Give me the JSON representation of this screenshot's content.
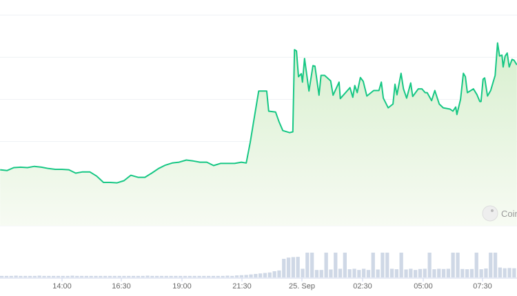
{
  "chart_data": {
    "type": "area",
    "title": "",
    "xlabel": "",
    "ylabel": "",
    "grid": true,
    "legend": "none",
    "ylim": [
      0,
      5
    ],
    "y_tick_labels_shown": false,
    "x_tick_labels": [
      "14:00",
      "16:30",
      "19:00",
      "21:30",
      "25. Sep",
      "02:30",
      "05:00",
      "07:30"
    ],
    "colors": {
      "line": "#16c784",
      "fill_top": "#d8efcf",
      "fill_bottom": "#f7fbf3",
      "grid": "#eef1f4",
      "volume": "#cfd8e6"
    },
    "watermark": {
      "text": "Coin",
      "icon": "coingecko-logo-icon"
    },
    "series": [
      {
        "x": [
          "24 11:26",
          "24 11:43",
          "24 12:00",
          "24 12:17",
          "24 12:34",
          "24 12:51",
          "24 13:09",
          "24 13:26",
          "24 13:43",
          "24 14:00",
          "24 14:17",
          "24 14:34",
          "24 14:51",
          "24 15:09",
          "24 15:26",
          "24 15:43",
          "24 16:00",
          "24 16:17",
          "24 16:34",
          "24 16:51",
          "24 17:09",
          "24 17:26",
          "24 17:43",
          "24 18:00",
          "24 18:17",
          "24 18:34",
          "24 18:51",
          "24 19:09",
          "24 19:26",
          "24 19:43",
          "24 20:00",
          "24 20:17",
          "24 20:34",
          "24 20:51",
          "24 21:09",
          "24 21:26",
          "24 21:38",
          "24 21:48",
          "24 21:55",
          "24 22:09",
          "24 22:29",
          "24 22:34",
          "24 22:51",
          "24 23:00",
          "24 23:09",
          "24 23:26",
          "24 23:34",
          "24 23:38",
          "24 23:43",
          "24 23:48",
          "24 23:55",
          "24 23:58",
          "25 00:03",
          "25 00:14",
          "25 00:24",
          "25 00:29",
          "25 00:39",
          "25 00:44",
          "25 00:53",
          "25 01:08",
          "25 01:14",
          "25 01:29",
          "25 01:32",
          "25 01:56",
          "25 02:03",
          "25 02:08",
          "25 02:14",
          "25 02:22",
          "25 02:29",
          "25 02:38",
          "25 02:55",
          "25 03:08",
          "25 03:14",
          "25 03:19",
          "25 03:31",
          "25 03:43",
          "25 03:48",
          "25 03:53",
          "25 04:03",
          "25 04:09",
          "25 04:17",
          "25 04:27",
          "25 04:32",
          "25 04:46",
          "25 04:55",
          "25 05:03",
          "25 05:08",
          "25 05:19",
          "25 05:27",
          "25 05:38",
          "25 05:48",
          "25 06:05",
          "25 06:12",
          "25 06:19",
          "25 06:22",
          "25 06:31",
          "25 06:38",
          "25 06:43",
          "25 06:48",
          "25 07:03",
          "25 07:12",
          "25 07:19",
          "25 07:22",
          "25 07:27",
          "25 07:31",
          "25 07:38",
          "25 07:46",
          "25 07:57",
          "25 08:03",
          "25 08:08",
          "25 08:14",
          "25 08:17",
          "25 08:22",
          "25 08:27",
          "25 08:32",
          "25 08:39",
          "25 08:44",
          "25 08:51"
        ],
        "y": [
          1.33,
          1.31,
          1.38,
          1.39,
          1.38,
          1.41,
          1.39,
          1.36,
          1.34,
          1.34,
          1.33,
          1.25,
          1.28,
          1.28,
          1.18,
          1.03,
          1.03,
          1.02,
          1.07,
          1.2,
          1.15,
          1.15,
          1.25,
          1.36,
          1.44,
          1.49,
          1.51,
          1.56,
          1.54,
          1.51,
          1.51,
          1.43,
          1.48,
          1.48,
          1.48,
          1.51,
          1.49,
          1.98,
          2.39,
          3.2,
          3.2,
          2.72,
          2.7,
          2.46,
          2.26,
          2.21,
          2.23,
          4.18,
          4.15,
          3.54,
          3.61,
          3.41,
          3.97,
          3.2,
          3.8,
          3.79,
          3.1,
          3.57,
          3.57,
          3.44,
          3.1,
          3.41,
          3.02,
          3.28,
          3.05,
          3.33,
          3.16,
          3.52,
          3.43,
          3.08,
          3.21,
          3.21,
          3.41,
          3.03,
          2.8,
          2.89,
          3.36,
          3.11,
          3.62,
          3.25,
          3.03,
          3.39,
          3.07,
          3.25,
          3.25,
          3.16,
          3.16,
          2.97,
          3.21,
          2.89,
          2.8,
          2.77,
          2.72,
          2.82,
          2.64,
          3.0,
          3.62,
          3.54,
          3.16,
          3.25,
          3.11,
          2.95,
          2.95,
          3.48,
          3.51,
          3.08,
          3.21,
          3.57,
          4.34,
          4.03,
          4.05,
          3.77,
          4.03,
          4.1,
          3.77,
          3.95,
          3.93,
          3.82
        ]
      }
    ],
    "volume": [
      0.06,
      0.06,
      0.06,
      0.07,
      0.06,
      0.06,
      0.06,
      0.06,
      0.07,
      0.06,
      0.06,
      0.06,
      0.06,
      0.06,
      0.06,
      0.07,
      0.06,
      0.06,
      0.06,
      0.06,
      0.06,
      0.06,
      0.06,
      0.06,
      0.06,
      0.06,
      0.06,
      0.06,
      0.06,
      0.06,
      0.06,
      0.07,
      0.06,
      0.06,
      0.06,
      0.06,
      0.06,
      0.06,
      0.06,
      0.06,
      0.06,
      0.06,
      0.06,
      0.06,
      0.06,
      0.06,
      0.06,
      0.06,
      0.07,
      0.06,
      0.08,
      0.09,
      0.1,
      0.12,
      0.14,
      0.16,
      0.18,
      0.2,
      0.25,
      0.28,
      0.75,
      0.8,
      0.82,
      0.83,
      0.35,
      1.0,
      1.0,
      0.3,
      0.3,
      1.0,
      0.32,
      1.0,
      0.35,
      1.0,
      0.33,
      0.35,
      0.3,
      0.35,
      0.3,
      1.0,
      0.32,
      1.0,
      1.0,
      0.35,
      0.33,
      1.0,
      0.32,
      0.35,
      0.3,
      0.34,
      0.35,
      1.0,
      0.33,
      0.35,
      0.34,
      0.35,
      1.0,
      1.0,
      0.34,
      0.33,
      0.34,
      1.0,
      0.33,
      0.36,
      1.0,
      1.0,
      0.4,
      0.37,
      0.38,
      0.37
    ]
  }
}
